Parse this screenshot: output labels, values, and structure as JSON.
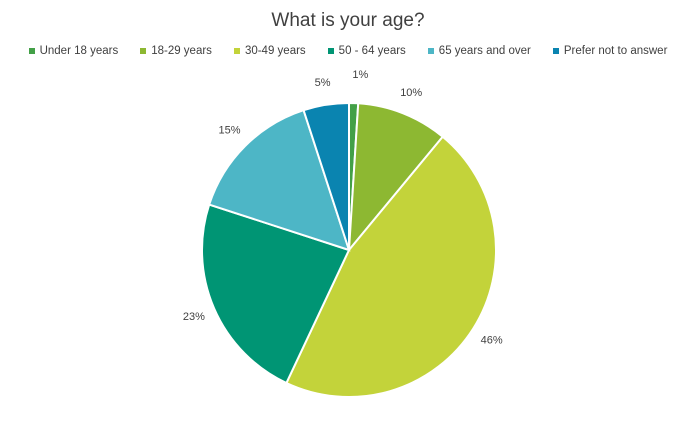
{
  "chart_data": {
    "type": "pie",
    "title": "What is your age?",
    "legend_position": "top",
    "slices": [
      {
        "label": "Under 18 years",
        "value": 1,
        "data_label": "1%",
        "color": "#43A047"
      },
      {
        "label": "18-29 years",
        "value": 10,
        "data_label": "10%",
        "color": "#8DB832"
      },
      {
        "label": "30-49 years",
        "value": 46,
        "data_label": "46%",
        "color": "#C3D33A"
      },
      {
        "label": "50 - 64 years",
        "value": 23,
        "data_label": "23%",
        "color": "#009574"
      },
      {
        "label": "65 years and over",
        "value": 15,
        "data_label": "15%",
        "color": "#4DB6C6"
      },
      {
        "label": "Prefer not to answer",
        "value": 5,
        "data_label": "5%",
        "color": "#0A84B0"
      }
    ]
  }
}
